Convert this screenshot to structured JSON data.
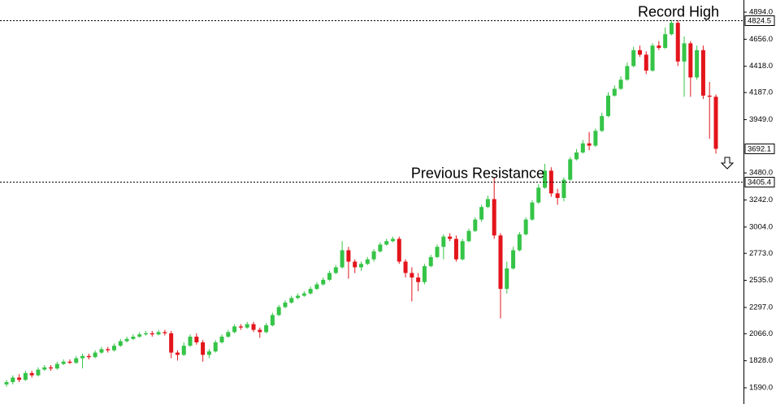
{
  "chart_data": {
    "type": "candlestick",
    "up_color": "#35c447",
    "down_color": "#e3141b",
    "ylim": [
      1519,
      5001
    ],
    "yticks": [
      {
        "value": 4894,
        "label": "4894.0"
      },
      {
        "value": 4656,
        "label": "4656.0"
      },
      {
        "value": 4418,
        "label": "4418.0"
      },
      {
        "value": 4187,
        "label": "4187.0"
      },
      {
        "value": 3949,
        "label": "3949.0"
      },
      {
        "value": 3480,
        "label": "3480.0"
      },
      {
        "value": 3242,
        "label": "3242.0"
      },
      {
        "value": 3004,
        "label": "3004.0"
      },
      {
        "value": 2773,
        "label": "2773.0"
      },
      {
        "value": 2535,
        "label": "2535.0"
      },
      {
        "value": 2297,
        "label": "2297.0"
      },
      {
        "value": 2066,
        "label": "2066.0"
      },
      {
        "value": 1828,
        "label": "1828.0"
      },
      {
        "value": 1590,
        "label": "1590.0"
      }
    ],
    "annotations": [
      {
        "text": "Record High",
        "value": 4824.5
      },
      {
        "text": "Previous Resistance",
        "value": 3405.4
      }
    ],
    "last_price": 3692.1,
    "open": [
      1620,
      1640,
      1680,
      1660,
      1720,
      1700,
      1750,
      1770,
      1760,
      1800,
      1820,
      1810,
      1850,
      1870,
      1860,
      1900,
      1930,
      1920,
      1960,
      2000,
      2020,
      2040,
      2060,
      2070,
      2060,
      2080,
      2070,
      1900,
      1880,
      1960,
      2040,
      1990,
      1880,
      1910,
      1990,
      2040,
      2080,
      2130,
      2120,
      2150,
      2100,
      2080,
      2140,
      2230,
      2300,
      2340,
      2380,
      2400,
      2420,
      2460,
      2500,
      2540,
      2600,
      2650,
      2800,
      2700,
      2650,
      2680,
      2720,
      2790,
      2850,
      2880,
      2900,
      2700,
      2600,
      2560,
      2520,
      2660,
      2740,
      2830,
      2920,
      2900,
      2720,
      2880,
      2970,
      3070,
      3180,
      3250,
      2930,
      2460,
      2640,
      2800,
      2940,
      3070,
      3220,
      3350,
      3500,
      3300,
      3260,
      3420,
      3600,
      3660,
      3740,
      3720,
      3850,
      3980,
      4160,
      4220,
      4300,
      4420,
      4560,
      4520,
      4380,
      4600,
      4580,
      4700,
      4800,
      4460,
      4620,
      4320,
      4560,
      4160,
      4150
    ],
    "high": [
      1660,
      1700,
      1710,
      1740,
      1740,
      1770,
      1790,
      1790,
      1820,
      1840,
      1840,
      1870,
      1890,
      1890,
      1920,
      1950,
      1950,
      1980,
      2020,
      2040,
      2060,
      2080,
      2090,
      2090,
      2100,
      2100,
      2090,
      1920,
      1990,
      2060,
      2070,
      2010,
      1930,
      2010,
      2060,
      2100,
      2150,
      2150,
      2170,
      2170,
      2120,
      2160,
      2250,
      2320,
      2360,
      2400,
      2420,
      2440,
      2480,
      2520,
      2560,
      2620,
      2670,
      2880,
      2830,
      2720,
      2700,
      2740,
      2810,
      2870,
      2900,
      2920,
      2920,
      2720,
      2650,
      2600,
      2680,
      2760,
      2850,
      2940,
      2950,
      2930,
      2900,
      2990,
      3090,
      3200,
      3280,
      3440,
      2950,
      2700,
      2830,
      2960,
      3090,
      3240,
      3380,
      3560,
      3530,
      3340,
      3440,
      3620,
      3690,
      3770,
      3840,
      3870,
      4010,
      4190,
      4250,
      4330,
      4450,
      4590,
      4600,
      4550,
      4620,
      4640,
      4760,
      4824,
      4824,
      4680,
      4640,
      4600,
      4600,
      4280,
      4170
    ],
    "low": [
      1600,
      1620,
      1640,
      1650,
      1680,
      1690,
      1740,
      1740,
      1750,
      1790,
      1800,
      1800,
      1760,
      1840,
      1850,
      1890,
      1900,
      1910,
      1950,
      1990,
      2010,
      2030,
      2050,
      2040,
      2050,
      2050,
      1850,
      1830,
      1870,
      1950,
      1970,
      1820,
      1850,
      1900,
      1980,
      2030,
      2070,
      2100,
      2110,
      2080,
      2030,
      2070,
      2130,
      2220,
      2290,
      2330,
      2370,
      2390,
      2410,
      2450,
      2490,
      2530,
      2590,
      2640,
      2550,
      2600,
      2620,
      2670,
      2700,
      2780,
      2840,
      2870,
      2680,
      2560,
      2350,
      2440,
      2500,
      2650,
      2730,
      2720,
      2880,
      2700,
      2710,
      2870,
      2960,
      3050,
      3170,
      2900,
      2200,
      2420,
      2630,
      2790,
      2930,
      3060,
      3210,
      3340,
      3270,
      3200,
      3230,
      3410,
      3590,
      3650,
      3680,
      3710,
      3840,
      3970,
      4150,
      4210,
      4290,
      4410,
      4500,
      4350,
      4370,
      4560,
      4570,
      4690,
      4420,
      4150,
      4150,
      4300,
      4130,
      3780,
      3650
    ],
    "close": [
      1640,
      1680,
      1660,
      1720,
      1700,
      1750,
      1770,
      1760,
      1800,
      1820,
      1810,
      1850,
      1870,
      1860,
      1900,
      1930,
      1920,
      1960,
      2000,
      2020,
      2040,
      2060,
      2070,
      2060,
      2080,
      2070,
      1900,
      1880,
      1960,
      2040,
      1990,
      1880,
      1910,
      1990,
      2040,
      2080,
      2130,
      2120,
      2150,
      2100,
      2080,
      2140,
      2230,
      2300,
      2340,
      2380,
      2400,
      2420,
      2460,
      2500,
      2540,
      2600,
      2650,
      2800,
      2700,
      2650,
      2680,
      2720,
      2790,
      2850,
      2880,
      2900,
      2700,
      2600,
      2560,
      2520,
      2660,
      2740,
      2830,
      2920,
      2900,
      2720,
      2880,
      2970,
      3070,
      3180,
      3250,
      2930,
      2460,
      2640,
      2800,
      2940,
      3070,
      3220,
      3350,
      3500,
      3300,
      3260,
      3420,
      3600,
      3660,
      3740,
      3720,
      3850,
      3980,
      4160,
      4220,
      4300,
      4420,
      4560,
      4520,
      4380,
      4600,
      4580,
      4700,
      4800,
      4460,
      4620,
      4320,
      4560,
      4160,
      4150,
      3692.1
    ]
  }
}
